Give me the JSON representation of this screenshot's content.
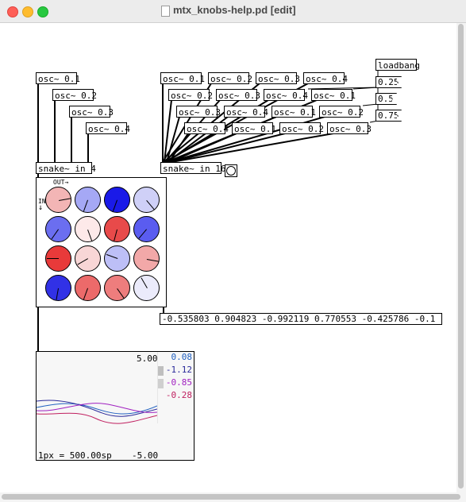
{
  "window": {
    "title": "mtx_knobs-help.pd [edit]"
  },
  "left_osc": [
    "osc~ 0.1",
    "osc~ 0.2",
    "osc~ 0.3",
    "osc~ 0.4"
  ],
  "snake4": "snake~ in 4",
  "snake16": "snake~ in 16",
  "right_osc_row1": [
    "osc~ 0.1",
    "osc~ 0.2",
    "osc~ 0.3",
    "osc~ 0.4"
  ],
  "right_osc_row2": [
    "osc~ 0.2",
    "osc~ 0.3",
    "osc~ 0.4",
    "osc~ 0.1"
  ],
  "right_osc_row3": [
    "osc~ 0.3",
    "osc~ 0.4",
    "osc~ 0.1",
    "osc~ 0.2"
  ],
  "right_osc_row4": [
    "osc~ 0.4",
    "osc~ 0.1",
    "osc~ 0.2",
    "osc~ 0.3"
  ],
  "loadbang": "loadbang",
  "messages": [
    "0.25",
    "0.5",
    "0.75"
  ],
  "knob_matrix": {
    "out_label": "OUT→",
    "in_label": "IN",
    "in_arrow": "↓",
    "colors": [
      [
        "#f3b5b5",
        "#a5a8f5",
        "#1a1ae8",
        "#cfd0f7"
      ],
      [
        "#6b6ef0",
        "#fde9e9",
        "#e84a4a",
        "#5a5cf0"
      ],
      [
        "#e83a3a",
        "#f8d6d6",
        "#bdbff7",
        "#f2a8a8"
      ],
      [
        "#3131e6",
        "#ec6a6a",
        "#ee7d7d",
        "#ebebfb"
      ]
    ],
    "angles": [
      [
        80,
        200,
        200,
        140
      ],
      [
        215,
        160,
        195,
        220
      ],
      [
        -90,
        240,
        290,
        100
      ],
      [
        190,
        200,
        145,
        330
      ]
    ]
  },
  "list_output": "-0.535803 0.904823 -0.992119 0.770553 -0.425786 -0.1",
  "scope": {
    "max": "5.00",
    "min": "-5.00",
    "scale": "1px = 500.00sp",
    "values": [
      {
        "text": "0.08",
        "color": "#2060c0"
      },
      {
        "text": "-1.12",
        "color": "#2a2a9a"
      },
      {
        "text": "-0.85",
        "color": "#a020c0"
      },
      {
        "text": "-0.28",
        "color": "#c02060"
      }
    ]
  }
}
